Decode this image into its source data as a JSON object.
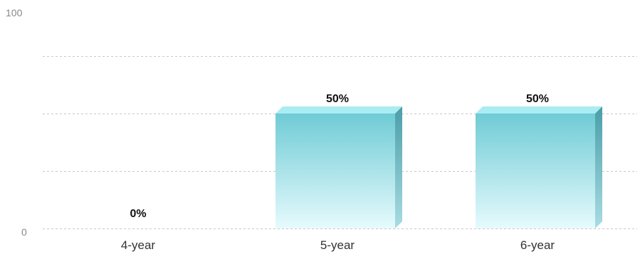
{
  "chart_data": {
    "type": "bar",
    "categories": [
      "4-year",
      "5-year",
      "6-year"
    ],
    "values": [
      0,
      50,
      50
    ],
    "data_labels": [
      "0%",
      "50%",
      "50%"
    ],
    "y_tick_labels": [
      "0",
      "100"
    ],
    "ylim": [
      0,
      100
    ],
    "grid": true,
    "bar_color": "#7fd3dc",
    "bar_top_color": "#a9ecf2",
    "bar_side_color": "#4fa9b5"
  }
}
